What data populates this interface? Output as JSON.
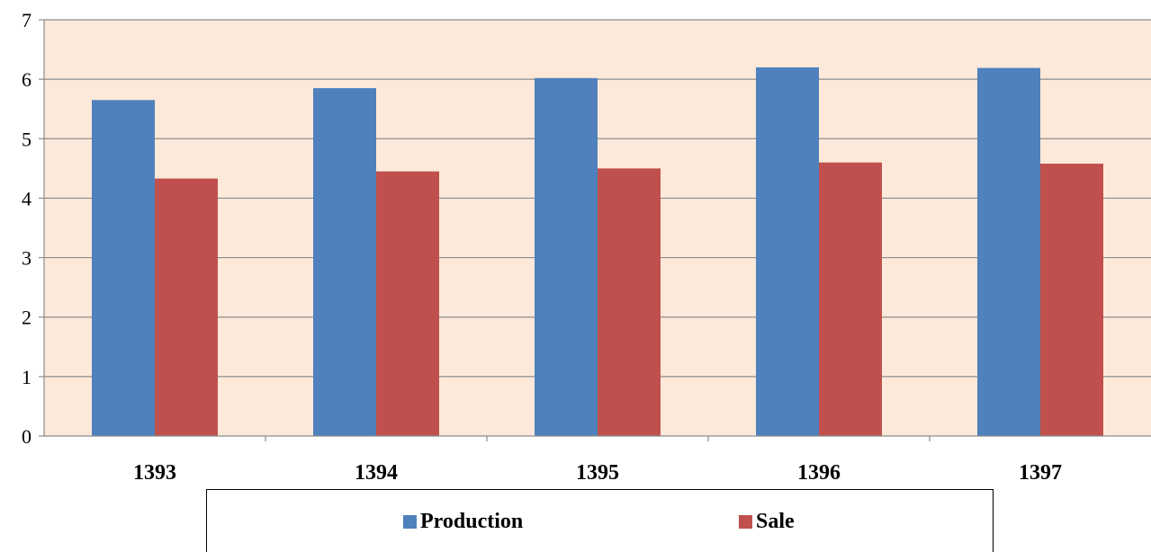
{
  "chart_data": {
    "type": "bar",
    "categories": [
      "1393",
      "1394",
      "1395",
      "1396",
      "1397"
    ],
    "series": [
      {
        "name": "Production",
        "values": [
          5.65,
          5.85,
          6.02,
          6.2,
          6.19
        ],
        "color": "#4F81BD"
      },
      {
        "name": "Sale",
        "values": [
          4.33,
          4.45,
          4.5,
          4.6,
          4.58
        ],
        "color": "#C0504D"
      }
    ],
    "ylim": [
      0,
      7
    ],
    "yticks": [
      "0",
      "1",
      "2",
      "3",
      "4",
      "5",
      "6",
      "7"
    ],
    "grid": true,
    "plot_background": "#FDE9D9",
    "legend_position": "bottom"
  }
}
